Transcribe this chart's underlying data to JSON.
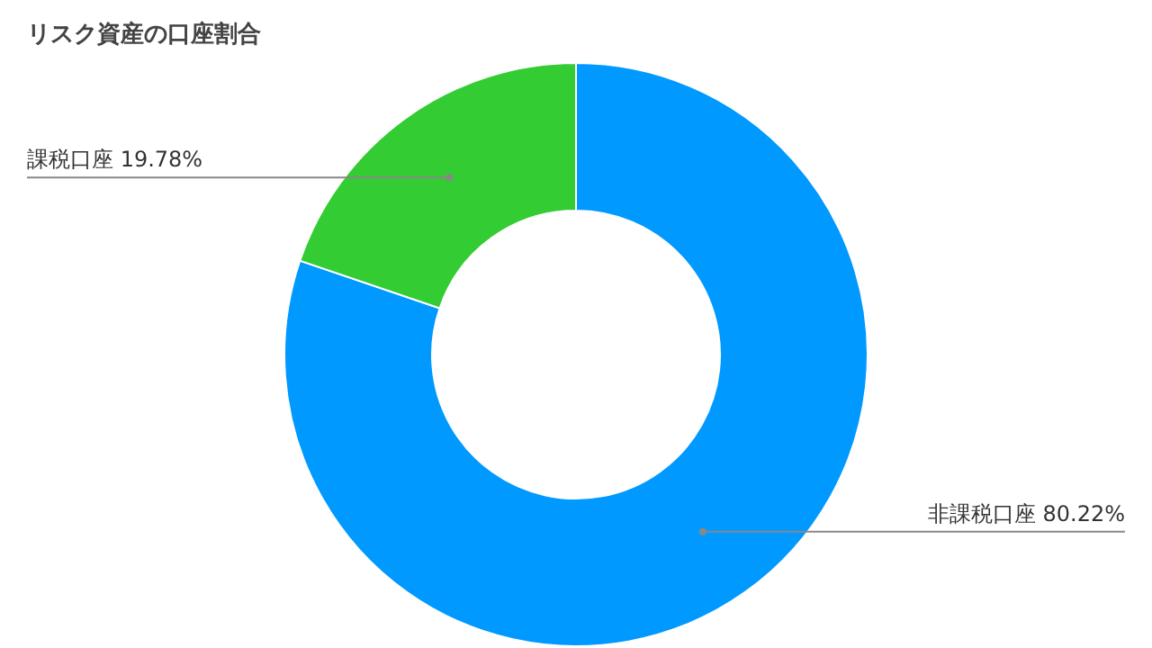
{
  "chart_data": {
    "type": "donut",
    "title": "リスク資産の口座割合",
    "categories": [
      "非課税口座",
      "課税口座"
    ],
    "values": [
      80.22,
      19.78
    ],
    "colors": [
      "#0099ff",
      "#33cc33"
    ],
    "value_labels": [
      "80.22%",
      "19.78%"
    ]
  }
}
